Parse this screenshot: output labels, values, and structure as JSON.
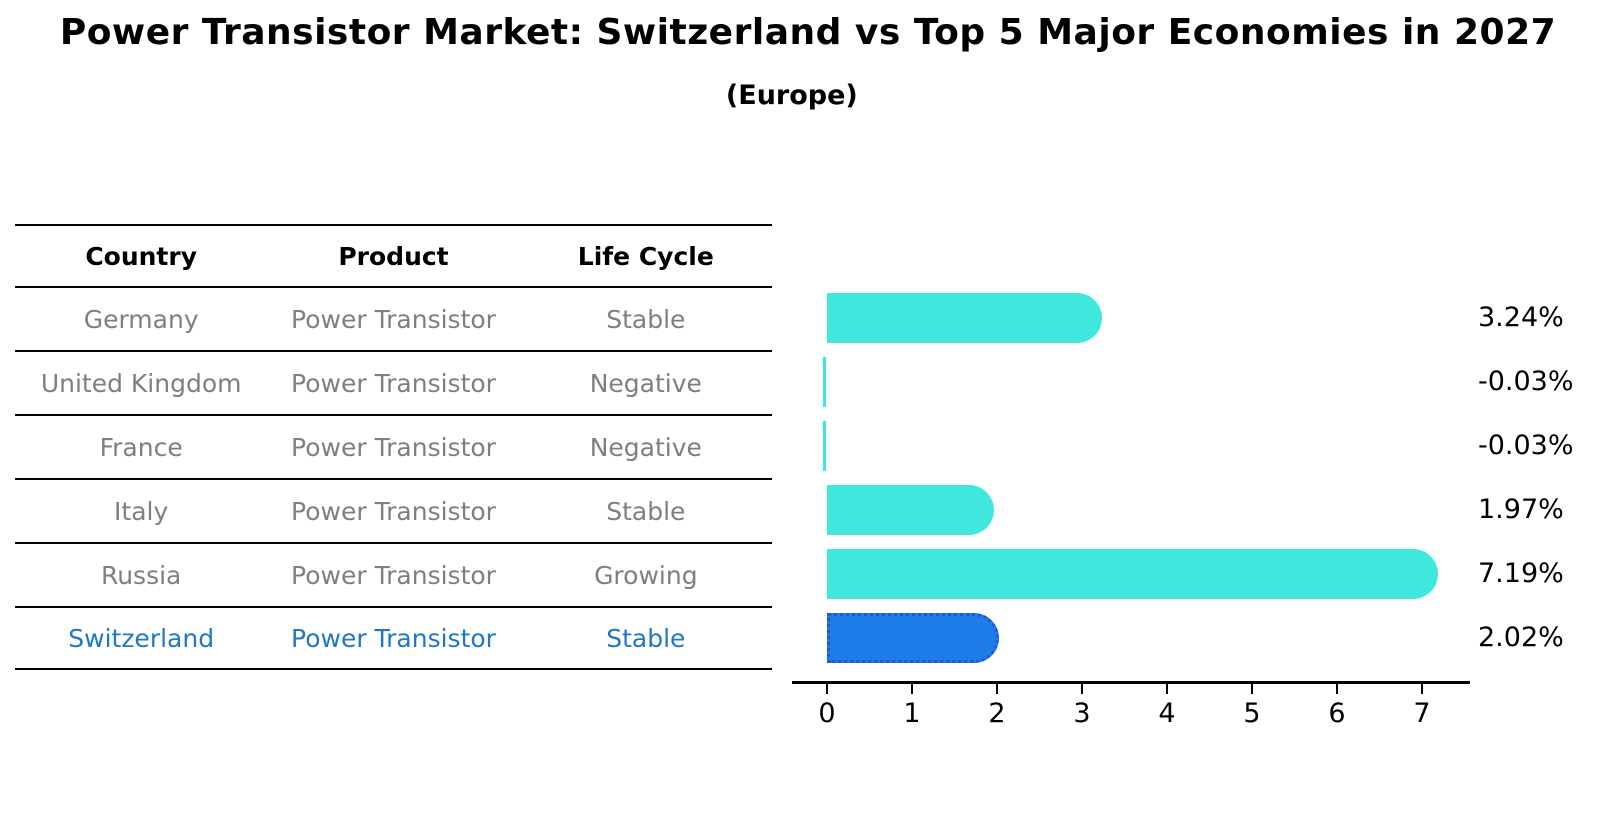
{
  "header": {
    "title": "Power Transistor Market: Switzerland vs Top 5 Major Economies in 2027",
    "subtitle": "(Europe)"
  },
  "table": {
    "headers": [
      "Country",
      "Product",
      "Life Cycle"
    ],
    "rows": [
      {
        "country": "Germany",
        "product": "Power Transistor",
        "life_cycle": "Stable",
        "highlight": false
      },
      {
        "country": "United Kingdom",
        "product": "Power Transistor",
        "life_cycle": "Negative",
        "highlight": false
      },
      {
        "country": "France",
        "product": "Power Transistor",
        "life_cycle": "Negative",
        "highlight": false
      },
      {
        "country": "Italy",
        "product": "Power Transistor",
        "life_cycle": "Stable",
        "highlight": false
      },
      {
        "country": "Russia",
        "product": "Power Transistor",
        "life_cycle": "Growing",
        "highlight": false
      },
      {
        "country": "Switzerland",
        "product": "Power Transistor",
        "life_cycle": "Stable",
        "highlight": true
      }
    ]
  },
  "chart_data": {
    "type": "bar",
    "orientation": "horizontal",
    "title": "Power Transistor Market: Switzerland vs Top 5 Major Economies in 2027 (Europe)",
    "categories": [
      "Germany",
      "United Kingdom",
      "France",
      "Italy",
      "Russia",
      "Switzerland"
    ],
    "values": [
      3.24,
      -0.03,
      -0.03,
      1.97,
      7.19,
      2.02
    ],
    "value_labels": [
      "3.24%",
      "-0.03%",
      "-0.03%",
      "1.97%",
      "7.19%",
      "2.02%"
    ],
    "unit": "percent growth",
    "xlim": [
      -0.45,
      7.55
    ],
    "xticks": [
      0,
      1,
      2,
      3,
      4,
      5,
      6,
      7
    ],
    "grid": false,
    "legend": "none",
    "highlight_index": 5
  },
  "colors": {
    "bar_cyan": "#40E7DD",
    "bar_blue": "#1E7CE8",
    "bar_blue_border": "#2457C8",
    "table_text_gray": "#7f7f7f",
    "highlight_text_blue": "#1f77c8",
    "axis_black": "#000000"
  }
}
